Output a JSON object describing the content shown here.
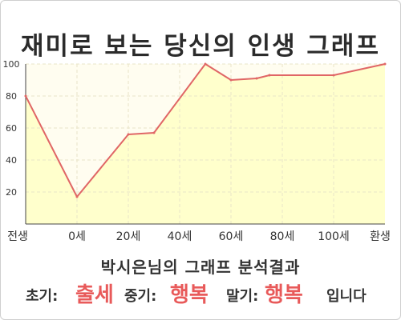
{
  "title": "재미로 보는 당신의 인생 그래프",
  "result": {
    "heading": "박시은님의 그래프 분석결과",
    "early_label": "초기:",
    "early_value": "출세",
    "middle_label": "중기:",
    "middle_value": "행복",
    "late_label": "말기:",
    "late_value": "행복",
    "closing": "입니다"
  },
  "colors": {
    "line": "#e06666",
    "fill": "#ffffcc",
    "accent_text": "#e85a5a"
  },
  "chart_data": {
    "type": "area",
    "title": "",
    "xlabel": "",
    "ylabel": "",
    "x_ticks": [
      "전생",
      "0세",
      "20세",
      "40세",
      "60세",
      "80세",
      "100세",
      "환생"
    ],
    "y_ticks": [
      "20",
      "40",
      "60",
      "80",
      "100"
    ],
    "ylim": [
      0,
      100
    ],
    "xlim": [
      -20,
      120
    ],
    "grid": true,
    "x": [
      -20,
      0,
      20,
      30,
      50,
      60,
      70,
      75,
      100,
      120
    ],
    "series": [
      {
        "values": [
          80,
          17,
          56,
          57,
          100,
          90,
          91,
          93,
          93,
          100
        ]
      }
    ]
  }
}
